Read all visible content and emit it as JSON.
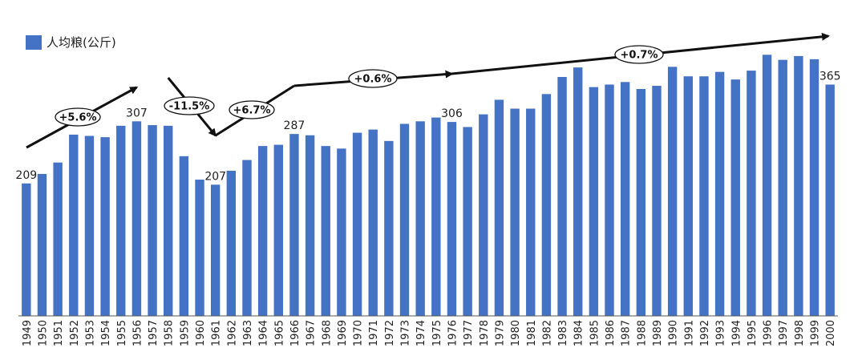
{
  "chart_data": {
    "type": "bar",
    "legend": {
      "position": "top-left",
      "entries": [
        "人均粮(公斤)"
      ]
    },
    "series": [
      {
        "name": "人均粮(公斤)",
        "color": "#4472C4"
      }
    ],
    "categories": [
      "1949",
      "1950",
      "1951",
      "1952",
      "1953",
      "1954",
      "1955",
      "1956",
      "1957",
      "1958",
      "1959",
      "1960",
      "1961",
      "1962",
      "1963",
      "1964",
      "1965",
      "1966",
      "1967",
      "1968",
      "1969",
      "1970",
      "1971",
      "1972",
      "1973",
      "1974",
      "1975",
      "1976",
      "1977",
      "1978",
      "1979",
      "1980",
      "1981",
      "1982",
      "1983",
      "1984",
      "1985",
      "1986",
      "1987",
      "1988",
      "1989",
      "1990",
      "1991",
      "1992",
      "1993",
      "1994",
      "1995",
      "1996",
      "1997",
      "1998",
      "1999",
      "2000"
    ],
    "values": [
      209,
      224,
      242,
      286,
      284,
      282,
      300,
      307,
      301,
      300,
      252,
      215,
      207,
      229,
      246,
      268,
      270,
      287,
      285,
      268,
      264,
      289,
      294,
      276,
      303,
      307,
      313,
      306,
      298,
      318,
      341,
      327,
      327,
      350,
      377,
      392,
      361,
      365,
      369,
      358,
      363,
      393,
      378,
      378,
      385,
      373,
      387,
      412,
      404,
      410,
      405,
      365
    ],
    "data_labels": [
      {
        "category": "1949",
        "text": "209"
      },
      {
        "category": "1956",
        "text": "307"
      },
      {
        "category": "1961",
        "text": "207"
      },
      {
        "category": "1966",
        "text": "287"
      },
      {
        "category": "1976",
        "text": "306"
      },
      {
        "category": "2000",
        "text": "365"
      }
    ],
    "annotations": [
      {
        "text": "+5.6%",
        "from": "1949",
        "to": "1956"
      },
      {
        "text": "-11.5%",
        "from": "1958",
        "to": "1961"
      },
      {
        "text": "+6.7%",
        "from": "1961",
        "to": "1966"
      },
      {
        "text": "+0.6%",
        "from": "1966",
        "to": "1976"
      },
      {
        "text": "+0.7%",
        "from": "1976",
        "to": "2000"
      }
    ],
    "ylim": [
      0,
      420
    ],
    "grid": false,
    "xlabel": "",
    "ylabel": ""
  }
}
